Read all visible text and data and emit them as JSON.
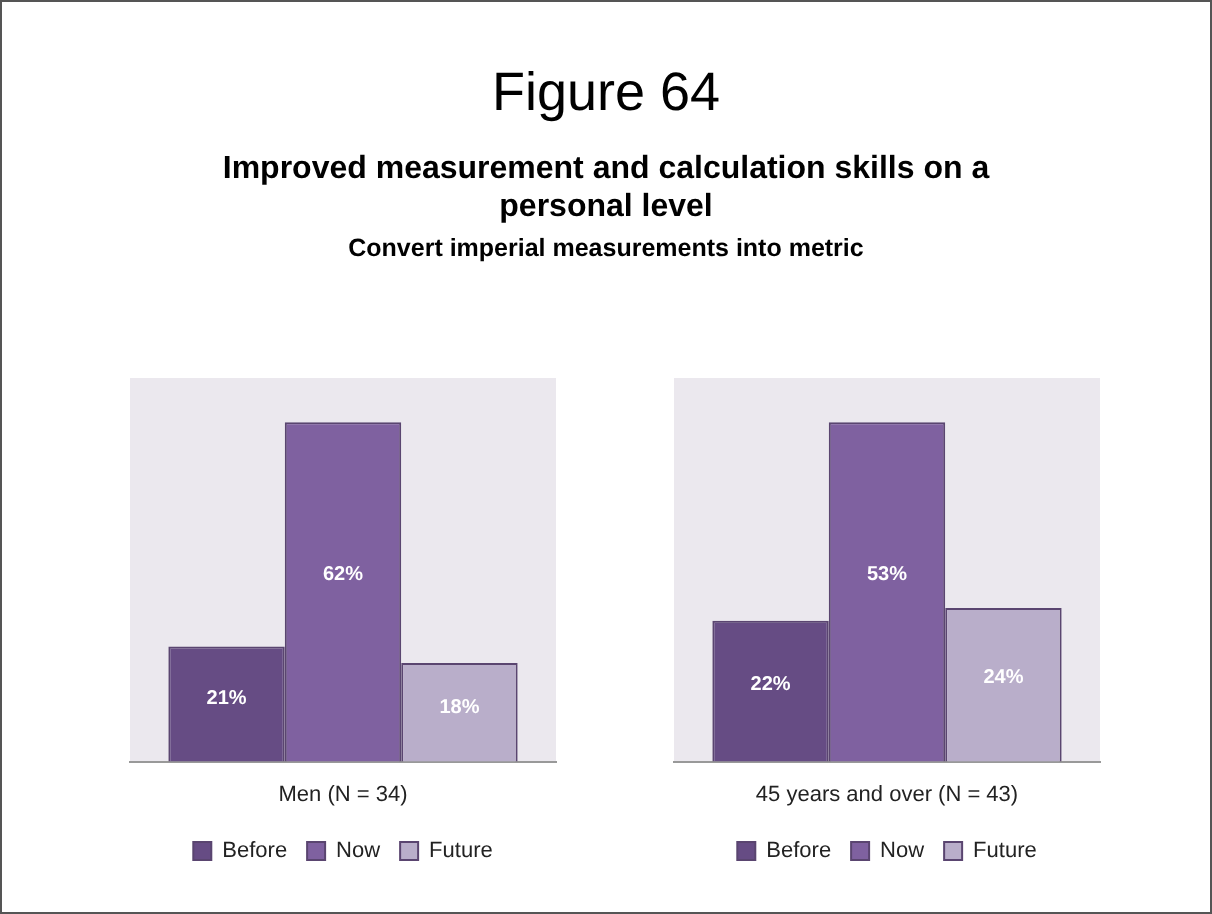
{
  "chart_data": [
    {
      "type": "bar",
      "title": "Figure 64",
      "subtitle": "Improved measurement and calculation skills on a personal level",
      "annotations": [
        "Convert imperial measurements into metric"
      ],
      "categories": [
        null
      ],
      "xlabel": "Men (N = 34)",
      "legend": "bottom",
      "series": [
        {
          "name": "Before",
          "color": "#664c84",
          "values": [
            21
          ],
          "value_labels": [
            "21%"
          ]
        },
        {
          "name": "Now",
          "color": "#7f61a0",
          "values": [
            62
          ],
          "value_labels": [
            "62%"
          ]
        },
        {
          "name": "Future",
          "color": "#b9aeca",
          "values": [
            18
          ],
          "value_labels": [
            "18%"
          ]
        }
      ]
    },
    {
      "type": "bar",
      "categories": [
        null
      ],
      "xlabel": "45 years and over (N = 43)",
      "legend": "bottom",
      "series": [
        {
          "name": "Before",
          "color": "#664c84",
          "values": [
            22
          ],
          "value_labels": [
            "22%"
          ]
        },
        {
          "name": "Now",
          "color": "#7f61a0",
          "values": [
            53
          ],
          "value_labels": [
            "53%"
          ]
        },
        {
          "name": "Future",
          "color": "#b9aeca",
          "values": [
            24
          ],
          "value_labels": [
            "24%"
          ]
        }
      ]
    }
  ]
}
